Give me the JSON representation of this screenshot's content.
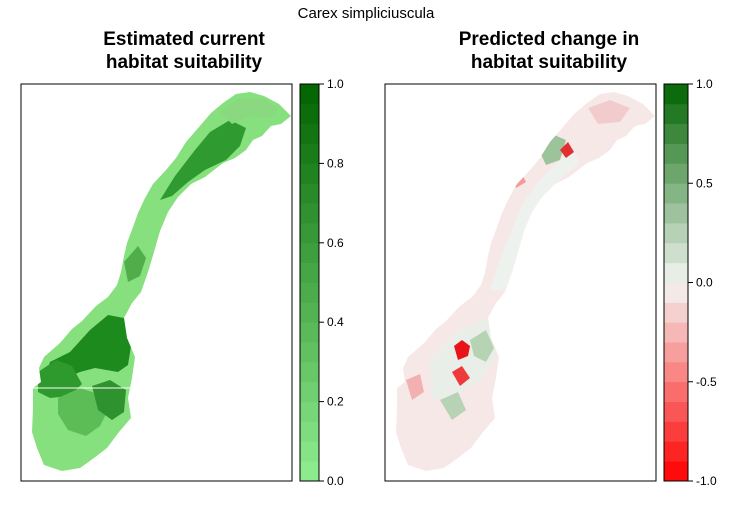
{
  "figure": {
    "title": "Carex simpliciuscula"
  },
  "panels": [
    {
      "title_lines": [
        "Estimated current",
        "habitat suitability"
      ],
      "legend": {
        "ticks": [
          "1.0",
          "0.8",
          "0.6",
          "0.4",
          "0.2",
          "0.0"
        ],
        "range": [
          0,
          1
        ],
        "n_bins": 20,
        "colors": {
          "low": "#90ee90",
          "high": "#006400"
        }
      }
    },
    {
      "title_lines": [
        "Predicted change in",
        "habitat suitability"
      ],
      "legend": {
        "ticks": [
          "1.0",
          "0.5",
          "0.0",
          "-0.5",
          "-1.0"
        ],
        "range": [
          -1,
          1
        ],
        "n_bins": 20,
        "colors": {
          "low": "#ff0000",
          "mid": "#f2f5f2",
          "high": "#006400"
        }
      }
    }
  ],
  "map_colors": {
    "current_base": "#86e07e",
    "current_high": "#1c8a1c",
    "change_base": "#f6e6e6",
    "change_neutral": "#eef2ee",
    "change_gain": "#a5c9a3",
    "change_loss": "#e8141a"
  }
}
